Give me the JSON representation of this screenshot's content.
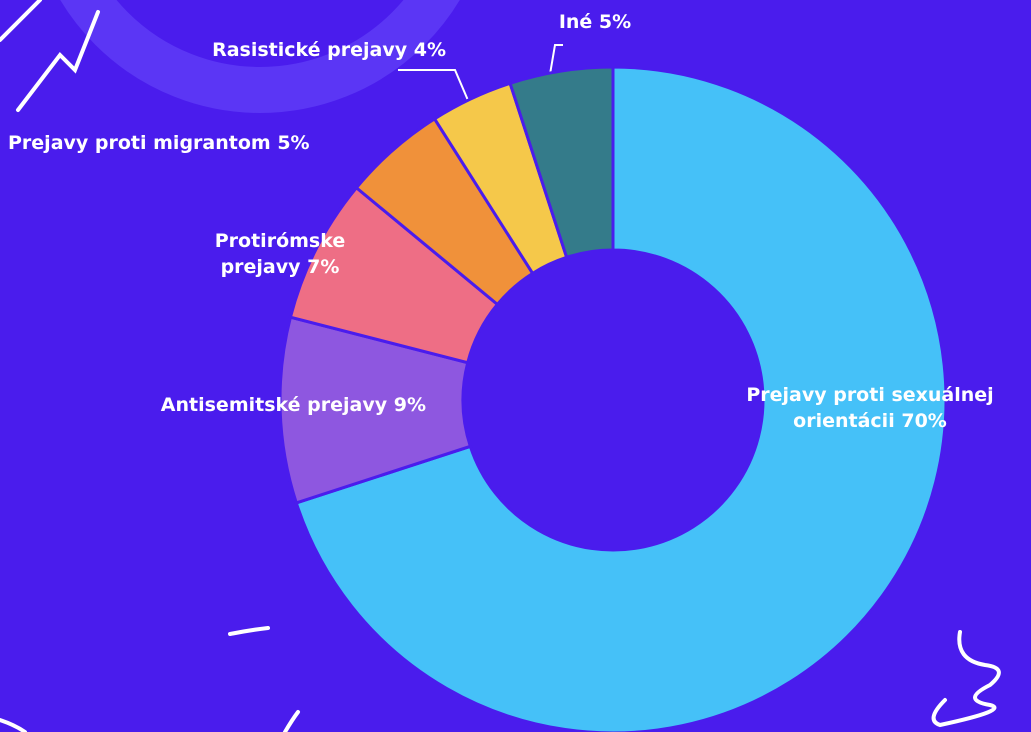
{
  "chart_data": {
    "type": "donut",
    "categories": [
      "Prejavy proti sexuálnej orientácii",
      "Antisemitské prejavy",
      "Protirómske prejavy",
      "Prejavy proti migrantom",
      "Rasistické prejavy",
      "Iné"
    ],
    "values": [
      70,
      9,
      7,
      5,
      4,
      5
    ],
    "value_labels": [
      "70%",
      "9%",
      "7%",
      "5%",
      "4%",
      "5%"
    ],
    "colors": [
      "#45c1f8",
      "#8e57e0",
      "#ee6e85",
      "#f0913a",
      "#f5c84a",
      "#347b8a"
    ]
  }
}
